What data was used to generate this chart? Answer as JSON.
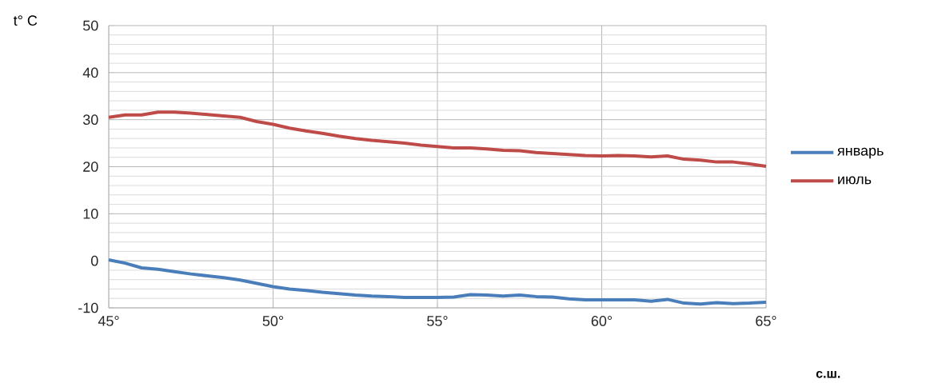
{
  "chart_data": {
    "type": "line",
    "ylabel": "t° C",
    "xlabel": "**с.ш.**",
    "x": [
      45,
      45.5,
      46,
      46.5,
      47,
      47.5,
      48,
      48.5,
      49,
      49.5,
      50,
      50.5,
      51,
      51.5,
      52,
      52.5,
      53,
      53.5,
      54,
      54.5,
      55,
      55.5,
      56,
      56.5,
      57,
      57.5,
      58,
      58.5,
      59,
      59.5,
      60,
      60.5,
      61,
      61.5,
      62,
      62.5,
      63,
      63.5,
      64,
      64.5,
      65
    ],
    "series": [
      {
        "name": "январь",
        "color": "#4a7ebb",
        "values": [
          0.2,
          -0.5,
          -1.5,
          -1.8,
          -2.3,
          -2.8,
          -3.2,
          -3.6,
          -4.1,
          -4.8,
          -5.5,
          -6,
          -6.3,
          -6.7,
          -7,
          -7.3,
          -7.5,
          -7.6,
          -7.8,
          -7.8,
          -7.8,
          -7.7,
          -7.2,
          -7.3,
          -7.5,
          -7.3,
          -7.6,
          -7.7,
          -8.1,
          -8.3,
          -8.3,
          -8.3,
          -8.3,
          -8.6,
          -8.2,
          -9,
          -9.2,
          -8.9,
          -9.1,
          -9,
          -8.8
        ]
      },
      {
        "name": "июль",
        "color": "#be4b48",
        "values": [
          30.5,
          31,
          31,
          31.6,
          31.6,
          31.4,
          31.1,
          30.8,
          30.5,
          29.6,
          29,
          28.2,
          27.6,
          27.1,
          26.5,
          26,
          25.6,
          25.3,
          25,
          24.6,
          24.3,
          24,
          24,
          23.8,
          23.5,
          23.4,
          23,
          22.8,
          22.6,
          22.4,
          22.3,
          22.4,
          22.3,
          22.1,
          22.3,
          21.6,
          21.4,
          21,
          21,
          20.6,
          20.1
        ]
      }
    ],
    "xlim": [
      45,
      65
    ],
    "ylim": [
      -10,
      50
    ],
    "xticks": [
      {
        "value": 45,
        "label": "45°"
      },
      {
        "value": 50,
        "label": "50°"
      },
      {
        "value": 55,
        "label": "55°"
      },
      {
        "value": 60,
        "label": "60°"
      },
      {
        "value": 65,
        "label": "65°"
      }
    ],
    "yticks": [
      -10,
      0,
      10,
      20,
      30,
      40,
      50
    ],
    "grid": true,
    "legend": "right",
    "marker": "none",
    "line_style": "solid"
  }
}
